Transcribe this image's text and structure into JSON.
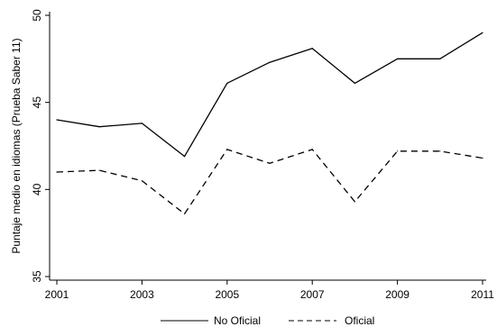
{
  "chart_data": {
    "type": "line",
    "title": "",
    "xlabel": "",
    "ylabel": "Puntaje medio en idiomas (Prueba Saber 11)",
    "x": [
      2001,
      2002,
      2003,
      2004,
      2005,
      2006,
      2007,
      2008,
      2009,
      2010,
      2011
    ],
    "xticks": [
      2001,
      2003,
      2005,
      2007,
      2009,
      2011
    ],
    "xlim": [
      2001,
      2011
    ],
    "yticks": [
      35,
      40,
      45,
      50
    ],
    "ylim": [
      35,
      50
    ],
    "grid": false,
    "legend_position": "bottom",
    "series": [
      {
        "name": "No Oficial",
        "style": "solid",
        "color": "#000000",
        "values": [
          44.0,
          43.6,
          43.8,
          41.9,
          46.1,
          47.3,
          48.1,
          46.1,
          47.5,
          47.5,
          49.0
        ]
      },
      {
        "name": "Oficial",
        "style": "dashed",
        "color": "#000000",
        "values": [
          41.0,
          41.1,
          40.5,
          38.6,
          42.3,
          41.5,
          42.3,
          39.3,
          42.2,
          42.2,
          41.8
        ]
      }
    ]
  }
}
